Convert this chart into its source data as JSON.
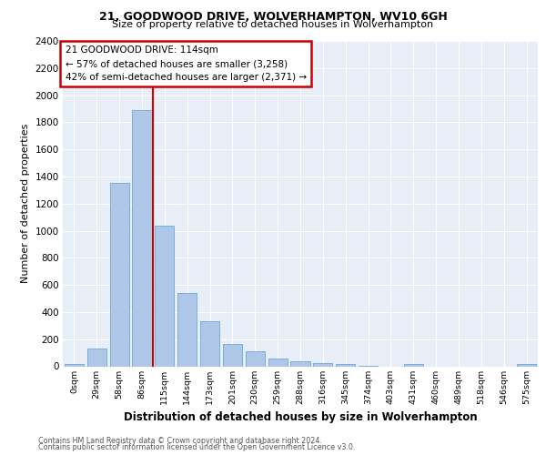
{
  "title1": "21, GOODWOOD DRIVE, WOLVERHAMPTON, WV10 6GH",
  "title2": "Size of property relative to detached houses in Wolverhampton",
  "xlabel": "Distribution of detached houses by size in Wolverhampton",
  "ylabel": "Number of detached properties",
  "footnote1": "Contains HM Land Registry data © Crown copyright and database right 2024.",
  "footnote2": "Contains public sector information licensed under the Open Government Licence v3.0.",
  "bar_labels": [
    "0sqm",
    "29sqm",
    "58sqm",
    "86sqm",
    "115sqm",
    "144sqm",
    "173sqm",
    "201sqm",
    "230sqm",
    "259sqm",
    "288sqm",
    "316sqm",
    "345sqm",
    "374sqm",
    "403sqm",
    "431sqm",
    "460sqm",
    "489sqm",
    "518sqm",
    "546sqm",
    "575sqm"
  ],
  "bar_values": [
    15,
    130,
    1350,
    1890,
    1040,
    540,
    335,
    165,
    110,
    60,
    35,
    25,
    20,
    5,
    0,
    20,
    0,
    0,
    0,
    0,
    15
  ],
  "bar_color": "#aec6e8",
  "bar_edge_color": "#5a9fd4",
  "annotation_title": "21 GOODWOOD DRIVE: 114sqm",
  "annotation_line1": "← 57% of detached houses are smaller (3,258)",
  "annotation_line2": "42% of semi-detached houses are larger (2,371) →",
  "vline_pos": 3.5,
  "ylim": [
    0,
    2400
  ],
  "yticks": [
    0,
    200,
    400,
    600,
    800,
    1000,
    1200,
    1400,
    1600,
    1800,
    2000,
    2200,
    2400
  ],
  "bg_color": "#e8eef7",
  "annotation_box_color": "#ffffff",
  "annotation_box_edge": "#cc0000",
  "vline_color": "#cc0000",
  "fig_width": 6.0,
  "fig_height": 5.0,
  "dpi": 100
}
